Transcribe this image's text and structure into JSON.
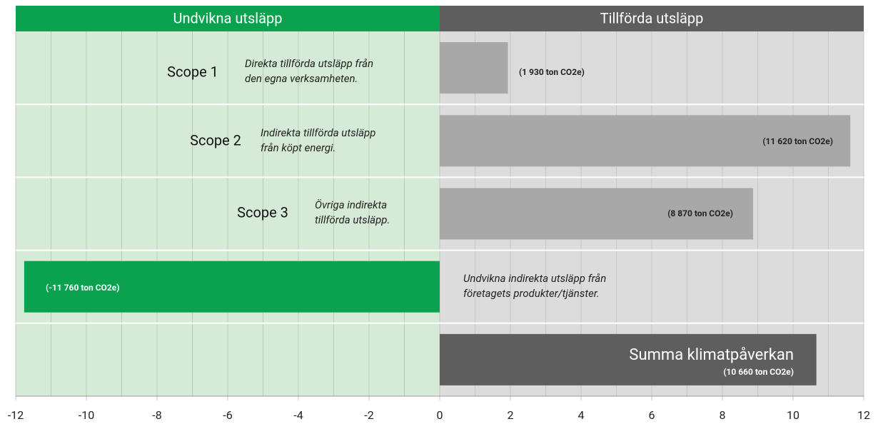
{
  "chart_data": {
    "type": "bar",
    "orientation": "horizontal",
    "header": [
      "Undvikna utsläpp",
      "Tillförda utsläpp"
    ],
    "header_colors": [
      "#0aa24f",
      "#5e5e5e"
    ],
    "background_colors": [
      "#d6ebd7",
      "#dcdcdc"
    ],
    "categories": [
      "Scope 1",
      "Scope 2",
      "Scope 3",
      null,
      "Summa klimatpåverkan"
    ],
    "descriptions": [
      [
        "Direkta tillförda utsläpp från",
        "den egna verksamheten."
      ],
      [
        "Indirekta tillförda utsläpp",
        "från köpt energi."
      ],
      [
        "Övriga indirekta",
        "tillförda utsläpp."
      ],
      [
        "Undvikna indirekta utsläpp från",
        "företagets produkter/tjänster."
      ],
      null
    ],
    "values": [
      1.93,
      11.62,
      8.87,
      -11.76,
      10.66
    ],
    "value_labels": [
      "(1 930 ton CO2e)",
      "(11 620 ton CO2e)",
      "(8 870 ton CO2e)",
      "(-11 760 ton CO2e)",
      "(10 660 ton CO2e)"
    ],
    "colors": [
      "#a8a8a8",
      "#a8a8a8",
      "#a8a8a8",
      "#0aa24f",
      "#5e5e5e"
    ],
    "xlim": [
      -12,
      12
    ],
    "xticks": [
      -12,
      -10,
      -8,
      -6,
      -4,
      -2,
      0,
      2,
      4,
      6,
      8,
      10,
      12
    ],
    "xticks_minor": [
      -11,
      -9,
      -7,
      -5,
      -3,
      -1,
      1,
      3,
      5,
      7,
      9,
      11
    ],
    "grid": true
  }
}
